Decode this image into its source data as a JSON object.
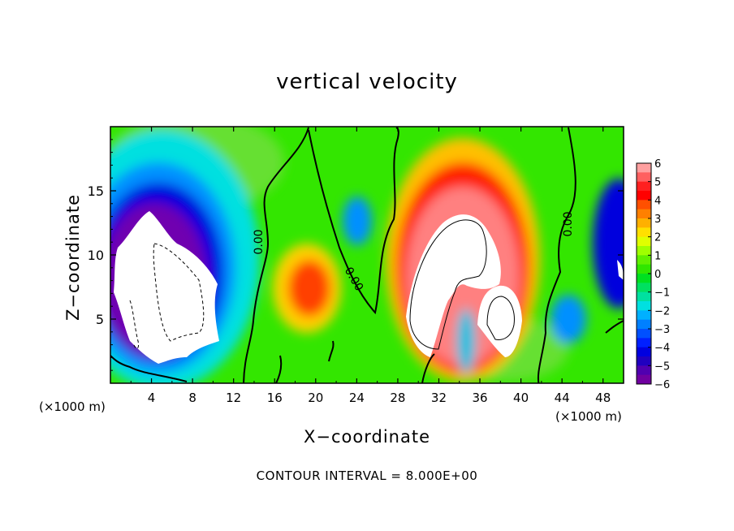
{
  "title": "vertical velocity",
  "footer": "CONTOUR INTERVAL = 8.000E+00",
  "chart_data": {
    "type": "heatmap",
    "title": "vertical velocity",
    "xlabel": "X−coordinate",
    "ylabel": "Z−coordinate",
    "x_unit_left": "(×1000 m)",
    "x_unit_right": "(×1000 m)",
    "xlim": [
      0,
      50
    ],
    "ylim": [
      0,
      20
    ],
    "x_ticks": [
      "4",
      "8",
      "12",
      "16",
      "20",
      "24",
      "28",
      "32",
      "36",
      "40",
      "44",
      "48"
    ],
    "y_ticks": [
      "5",
      "10",
      "15"
    ],
    "colorbar_ticks": [
      "6",
      "5",
      "4",
      "3",
      "2",
      "1",
      "0",
      "−1",
      "−2",
      "−3",
      "−4",
      "−5",
      "−6"
    ],
    "contour_labels": [
      "0.00",
      "0.00",
      "0.00"
    ],
    "contour_interval": "8.000E+00",
    "features": [
      {
        "name": "downdraft",
        "x": 5,
        "z": 8,
        "value": -6,
        "extent": [
          1,
          11,
          1,
          14
        ]
      },
      {
        "name": "updraft",
        "x": 34,
        "z": 8,
        "value": 6,
        "extent": [
          28,
          41,
          0,
          17
        ]
      },
      {
        "name": "updraft",
        "x": 20,
        "z": 8,
        "value": 3,
        "extent": [
          16,
          24,
          2,
          11
        ]
      },
      {
        "name": "downdraft",
        "x": 24,
        "z": 12,
        "value": -2,
        "extent": [
          22,
          27,
          9,
          14
        ]
      },
      {
        "name": "downdraft",
        "x": 49.5,
        "z": 13,
        "value": -5,
        "extent": [
          46,
          50,
          7,
          18
        ]
      },
      {
        "name": "downdraft",
        "x": 45,
        "z": 5,
        "value": -3,
        "extent": [
          42,
          48,
          2,
          7
        ]
      }
    ]
  }
}
